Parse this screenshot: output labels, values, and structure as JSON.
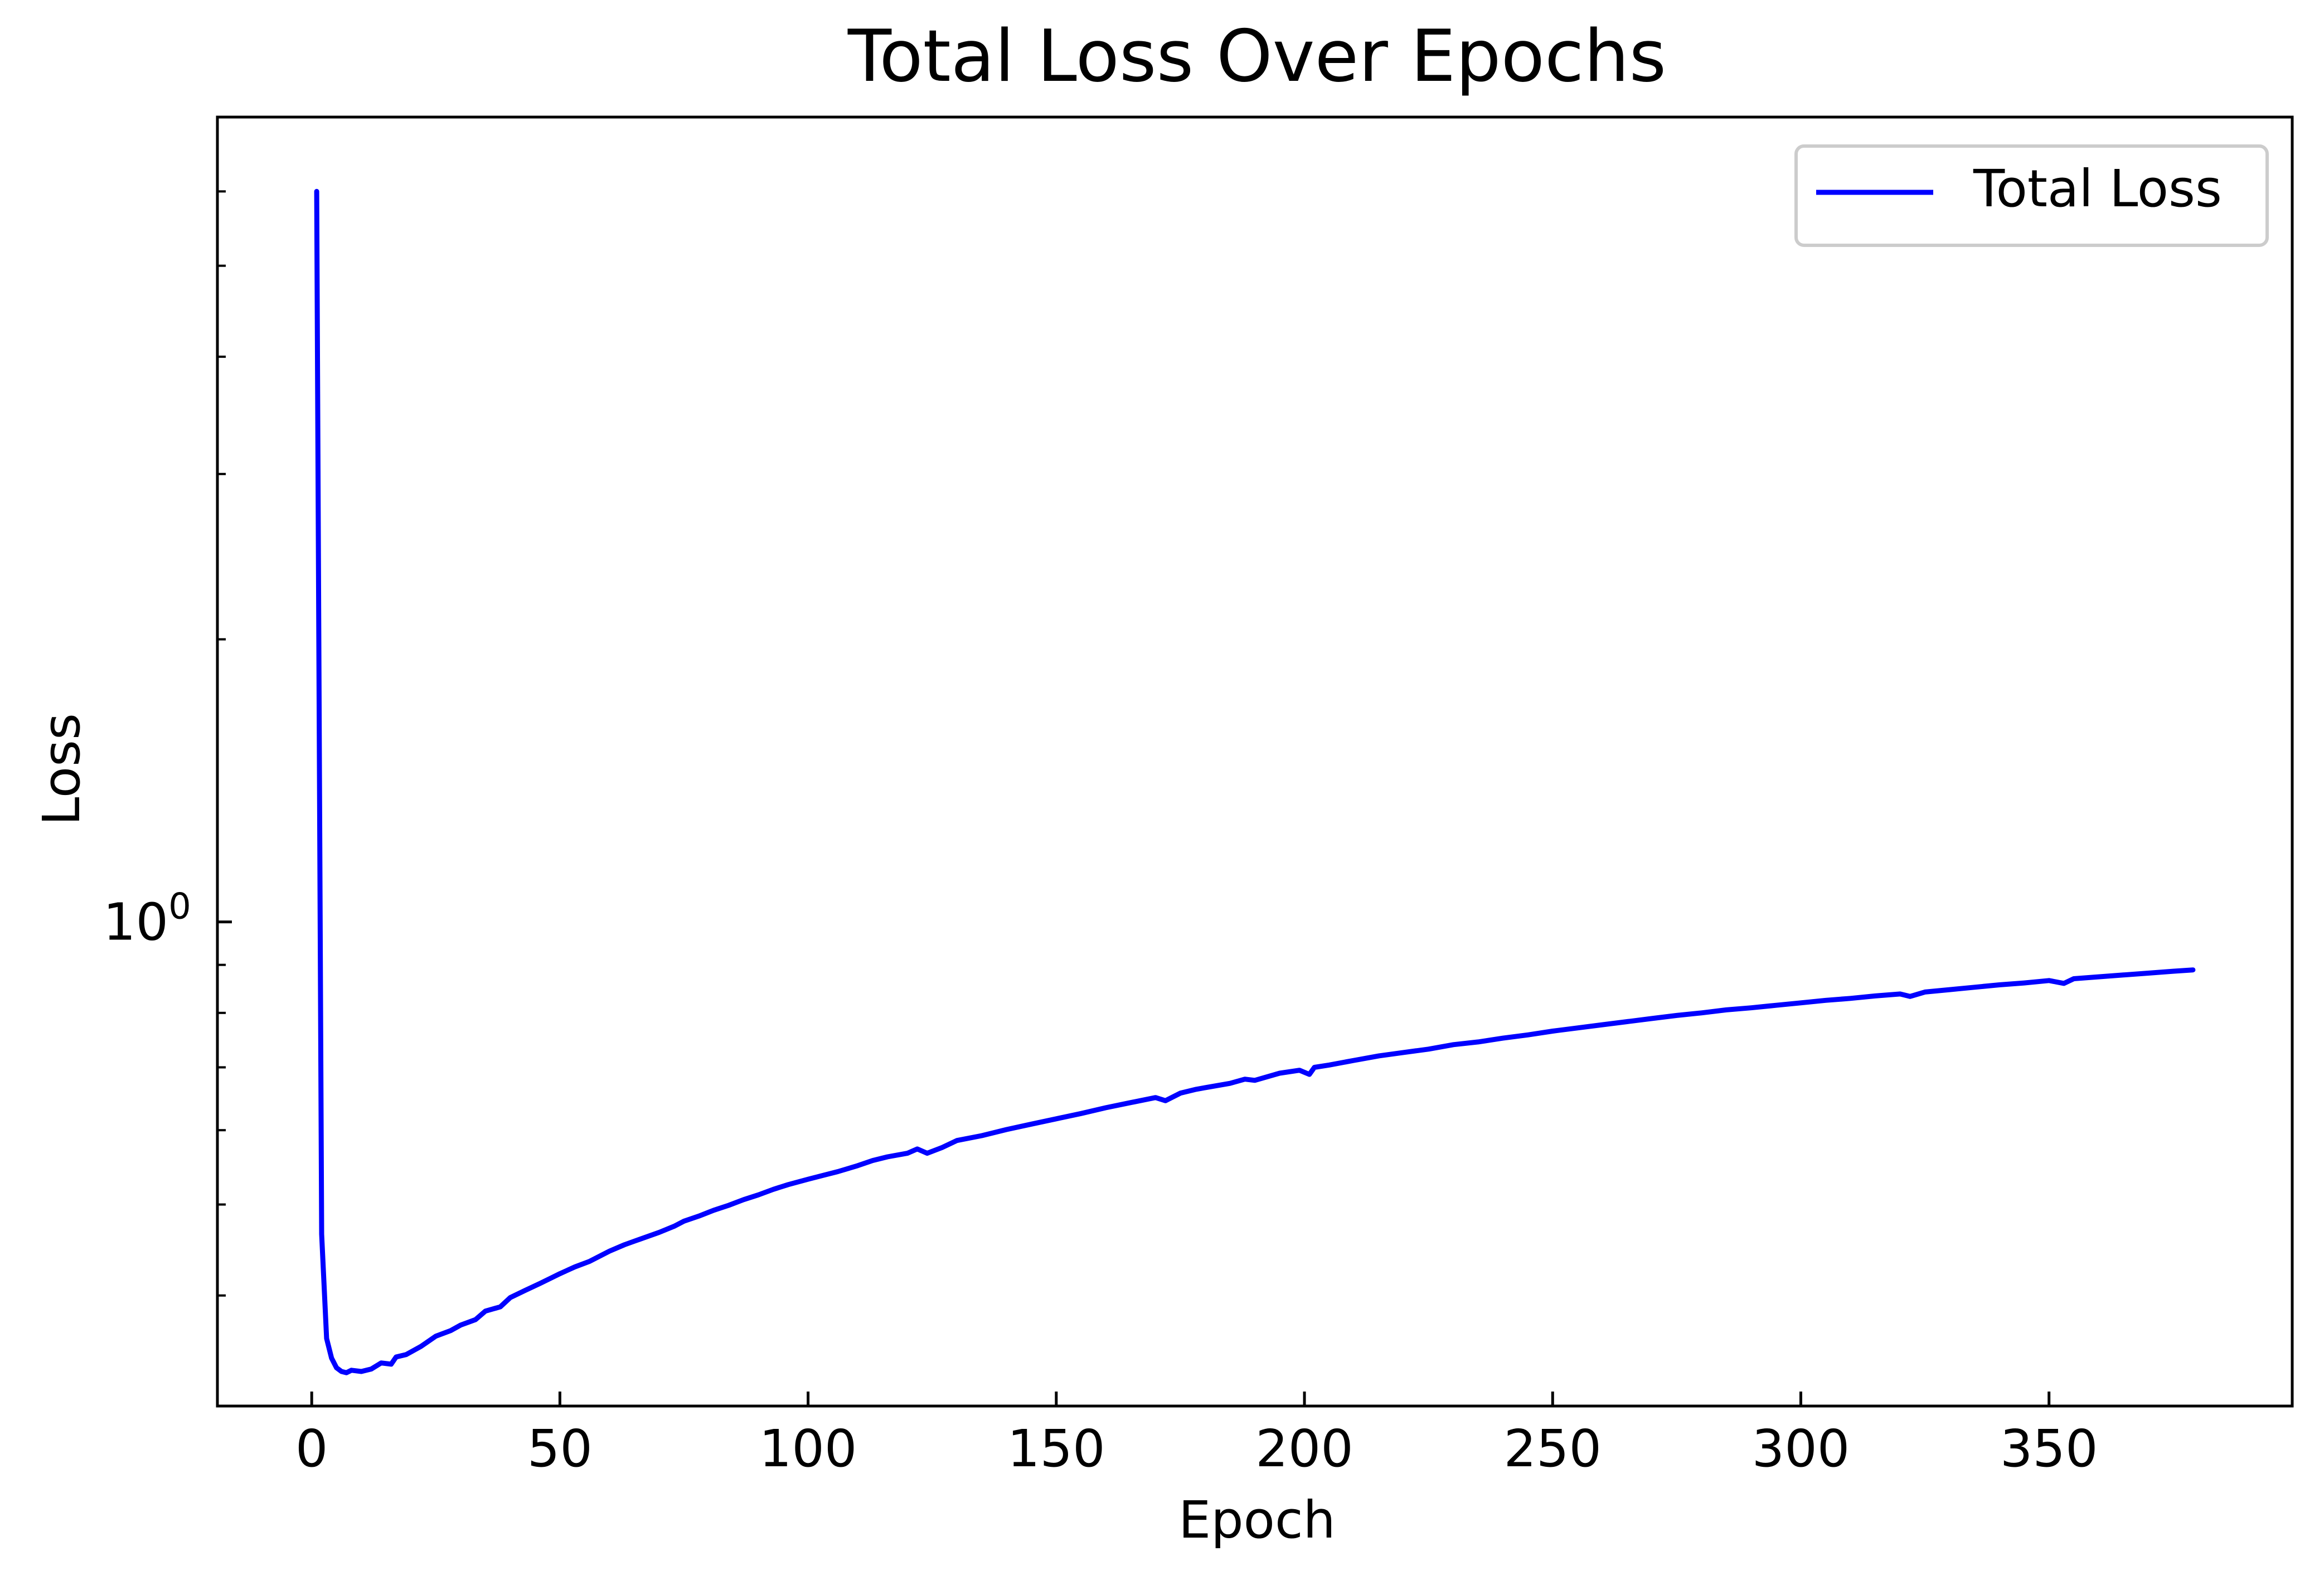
{
  "chart_data": {
    "type": "line",
    "title": "Total Loss Over Epochs",
    "xlabel": "Epoch",
    "ylabel": "Loss",
    "xlim": [
      -19,
      399
    ],
    "ylim": [
      0.305,
      7.2
    ],
    "yscale": "log",
    "grid": false,
    "legend_position": "top-right",
    "x_ticks": [
      0,
      50,
      100,
      150,
      200,
      250,
      300,
      350
    ],
    "x_tick_labels": [
      "0",
      "50",
      "100",
      "150",
      "200",
      "250",
      "300",
      "350"
    ],
    "y_major_ticks": [
      1
    ],
    "y_major_tick_labels": [
      {
        "base": "10",
        "exp": "0"
      }
    ],
    "y_minor_ticks": [
      0.4,
      0.5,
      0.6,
      0.7,
      0.8,
      0.9,
      2,
      3,
      4,
      5,
      6
    ],
    "series": [
      {
        "name": "Total Loss",
        "color": "#0000ff",
        "points": [
          [
            1,
            6.0
          ],
          [
            2,
            0.465
          ],
          [
            3,
            0.36
          ],
          [
            4,
            0.343
          ],
          [
            5,
            0.335
          ],
          [
            6,
            0.332
          ],
          [
            7,
            0.331
          ],
          [
            8,
            0.333
          ],
          [
            10,
            0.332
          ],
          [
            12,
            0.334
          ],
          [
            14,
            0.339
          ],
          [
            16,
            0.338
          ],
          [
            17,
            0.344
          ],
          [
            19,
            0.346
          ],
          [
            22,
            0.353
          ],
          [
            25,
            0.362
          ],
          [
            28,
            0.367
          ],
          [
            30,
            0.372
          ],
          [
            33,
            0.377
          ],
          [
            35,
            0.385
          ],
          [
            38,
            0.389
          ],
          [
            40,
            0.398
          ],
          [
            43,
            0.405
          ],
          [
            46,
            0.412
          ],
          [
            50,
            0.422
          ],
          [
            53,
            0.429
          ],
          [
            56,
            0.435
          ],
          [
            60,
            0.446
          ],
          [
            63,
            0.453
          ],
          [
            66,
            0.459
          ],
          [
            70,
            0.467
          ],
          [
            73,
            0.474
          ],
          [
            75,
            0.48
          ],
          [
            78,
            0.486
          ],
          [
            81,
            0.493
          ],
          [
            84,
            0.499
          ],
          [
            87,
            0.506
          ],
          [
            90,
            0.512
          ],
          [
            93,
            0.519
          ],
          [
            96,
            0.525
          ],
          [
            100,
            0.532
          ],
          [
            103,
            0.537
          ],
          [
            106,
            0.542
          ],
          [
            110,
            0.55
          ],
          [
            113,
            0.557
          ],
          [
            116,
            0.562
          ],
          [
            120,
            0.567
          ],
          [
            122,
            0.573
          ],
          [
            124,
            0.567
          ],
          [
            127,
            0.575
          ],
          [
            130,
            0.585
          ],
          [
            135,
            0.592
          ],
          [
            140,
            0.601
          ],
          [
            145,
            0.609
          ],
          [
            150,
            0.617
          ],
          [
            155,
            0.625
          ],
          [
            160,
            0.634
          ],
          [
            165,
            0.642
          ],
          [
            170,
            0.65
          ],
          [
            172,
            0.645
          ],
          [
            175,
            0.657
          ],
          [
            178,
            0.663
          ],
          [
            180,
            0.666
          ],
          [
            185,
            0.673
          ],
          [
            188,
            0.68
          ],
          [
            190,
            0.678
          ],
          [
            195,
            0.69
          ],
          [
            199,
            0.695
          ],
          [
            201,
            0.688
          ],
          [
            202,
            0.7
          ],
          [
            205,
            0.704
          ],
          [
            210,
            0.712
          ],
          [
            215,
            0.72
          ],
          [
            220,
            0.726
          ],
          [
            225,
            0.732
          ],
          [
            230,
            0.74
          ],
          [
            235,
            0.745
          ],
          [
            240,
            0.752
          ],
          [
            245,
            0.758
          ],
          [
            250,
            0.765
          ],
          [
            255,
            0.771
          ],
          [
            260,
            0.777
          ],
          [
            265,
            0.783
          ],
          [
            270,
            0.789
          ],
          [
            275,
            0.795
          ],
          [
            280,
            0.8
          ],
          [
            285,
            0.806
          ],
          [
            290,
            0.81
          ],
          [
            295,
            0.815
          ],
          [
            300,
            0.82
          ],
          [
            305,
            0.825
          ],
          [
            310,
            0.829
          ],
          [
            315,
            0.834
          ],
          [
            320,
            0.838
          ],
          [
            322,
            0.833
          ],
          [
            325,
            0.842
          ],
          [
            330,
            0.847
          ],
          [
            335,
            0.852
          ],
          [
            340,
            0.857
          ],
          [
            345,
            0.861
          ],
          [
            350,
            0.866
          ],
          [
            353,
            0.86
          ],
          [
            355,
            0.87
          ],
          [
            360,
            0.874
          ],
          [
            365,
            0.878
          ],
          [
            370,
            0.882
          ],
          [
            375,
            0.886
          ],
          [
            379,
            0.889
          ]
        ]
      }
    ]
  }
}
